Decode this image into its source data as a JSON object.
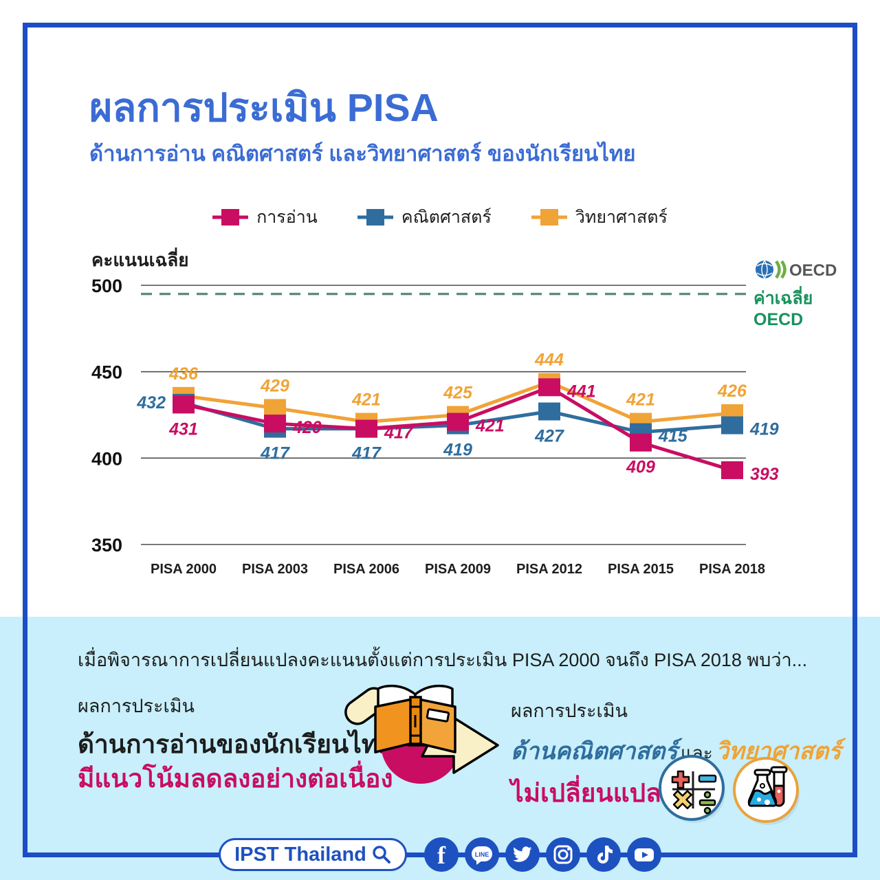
{
  "header": {
    "title": "ผลการประเมิน PISA",
    "subtitle": "ด้านการอ่าน คณิตศาสตร์ และวิทยาศาสตร์ ของนักเรียนไทย"
  },
  "legend": [
    {
      "id": "reading",
      "label": "การอ่าน",
      "color": "#C90D62"
    },
    {
      "id": "math",
      "label": "คณิตศาสตร์",
      "color": "#2F6D9E"
    },
    {
      "id": "science",
      "label": "วิทยาศาสตร์",
      "color": "#F0A336"
    }
  ],
  "chart_data": {
    "type": "line",
    "title": "ผลการประเมิน PISA ด้านการอ่าน คณิตศาสตร์ และวิทยาศาสตร์ ของนักเรียนไทย",
    "ylabel": "คะแนนเฉลี่ย",
    "xlabel": "",
    "categories": [
      "PISA 2000",
      "PISA 2003",
      "PISA 2006",
      "PISA 2009",
      "PISA 2012",
      "PISA 2015",
      "PISA 2018"
    ],
    "yticks": [
      500,
      450,
      400,
      350
    ],
    "ylim": [
      350,
      510
    ],
    "grid": true,
    "legend_position": "top",
    "oecd_line": {
      "label": "ค่าเฉลี่ย OECD",
      "value": 495,
      "style": "dashed",
      "color": "#5A8C7D"
    },
    "series": [
      {
        "id": "reading",
        "name": "การอ่าน",
        "color": "#C90D62",
        "values": [
          431,
          420,
          417,
          421,
          441,
          409,
          393
        ],
        "label_pos": [
          "below",
          "right",
          "right",
          "right",
          "right",
          "below",
          "right"
        ]
      },
      {
        "id": "math",
        "name": "คณิตศาสตร์",
        "color": "#2F6D9E",
        "values": [
          432,
          417,
          417,
          419,
          427,
          415,
          419
        ],
        "label_pos": [
          "left",
          "below",
          "below",
          "below",
          "below",
          "right",
          "right"
        ]
      },
      {
        "id": "science",
        "name": "วิทยาศาสตร์",
        "color": "#F0A336",
        "values": [
          436,
          429,
          421,
          425,
          444,
          421,
          426
        ],
        "label_pos": [
          "above",
          "above",
          "above",
          "above",
          "above",
          "above",
          "above"
        ]
      }
    ]
  },
  "oecd": {
    "logo_text": "OECD",
    "caption_line1": "ค่าเฉลี่ย",
    "caption_line2": "OECD"
  },
  "bottom": {
    "intro": "เมื่อพิจารณาการเปลี่ยนแปลงคะแนนตั้งแต่การประเมิน PISA 2000 จนถึง PISA 2018 พบว่า...",
    "left": {
      "line1": "ผลการประเมิน",
      "line2": "ด้านการอ่านของนักเรียนไทย",
      "line3": "มีแนวโน้มลดลงอย่างต่อเนื่อง"
    },
    "right": {
      "line1": "ผลการประเมิน",
      "math": "ด้านคณิตศาสตร์",
      "and": "และ",
      "science": "วิทยาศาสตร์",
      "line3": "ไม่เปลี่ยนแปลง"
    }
  },
  "footer": {
    "brand": "IPST Thailand",
    "social": [
      "facebook",
      "line",
      "twitter",
      "instagram",
      "tiktok",
      "youtube"
    ]
  },
  "colors": {
    "accent_blue": "#3B6CD4",
    "frame_blue": "#1C4DC4",
    "band_blue": "#C8EFFB",
    "reading_magenta": "#C90D62",
    "math_blue": "#2F6D9E",
    "science_orange": "#F0A336",
    "oecd_green": "#17925C",
    "footer_blue": "#1E51C0"
  }
}
